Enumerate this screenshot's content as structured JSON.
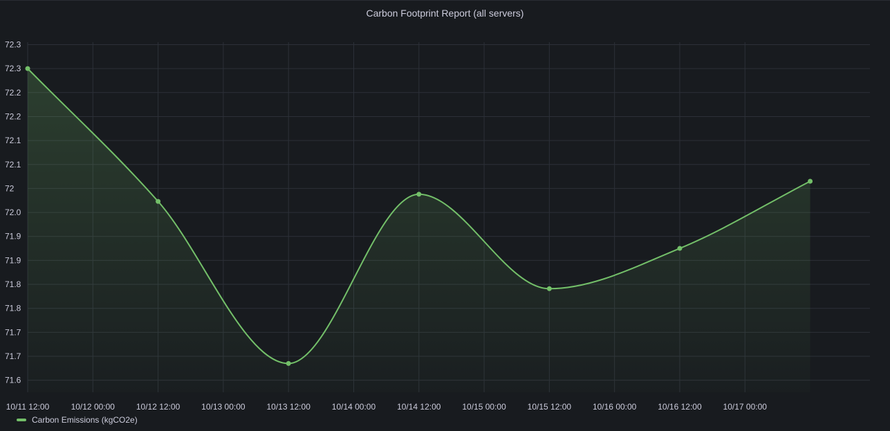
{
  "panel": {
    "title": "Carbon Footprint Report (all servers)"
  },
  "colors": {
    "background": "#181b1f",
    "grid": "#2c3038",
    "series": "#73bf69",
    "text": "#ccccdc"
  },
  "chart_data": {
    "type": "line",
    "title": "Carbon Footprint Report (all servers)",
    "grid": true,
    "legend_placement": "bottom-left",
    "x_type": "time",
    "xlim": [
      "2023-10-11T12:00",
      "2023-10-17T23:00"
    ],
    "ylim": [
      71.6,
      72.33
    ],
    "x_ticks": [
      {
        "t": "2023-10-11T12:00",
        "label": "10/11 12:00"
      },
      {
        "t": "2023-10-12T00:00",
        "label": "10/12 00:00"
      },
      {
        "t": "2023-10-12T12:00",
        "label": "10/12 12:00"
      },
      {
        "t": "2023-10-13T00:00",
        "label": "10/13 00:00"
      },
      {
        "t": "2023-10-13T12:00",
        "label": "10/13 12:00"
      },
      {
        "t": "2023-10-14T00:00",
        "label": "10/14 00:00"
      },
      {
        "t": "2023-10-14T12:00",
        "label": "10/14 12:00"
      },
      {
        "t": "2023-10-15T00:00",
        "label": "10/15 00:00"
      },
      {
        "t": "2023-10-15T12:00",
        "label": "10/15 12:00"
      },
      {
        "t": "2023-10-16T00:00",
        "label": "10/16 00:00"
      },
      {
        "t": "2023-10-16T12:00",
        "label": "10/16 12:00"
      },
      {
        "t": "2023-10-17T00:00",
        "label": "10/17 00:00"
      }
    ],
    "y_ticks": [
      {
        "v": 72.325,
        "label": "72.3"
      },
      {
        "v": 72.275,
        "label": "72.3"
      },
      {
        "v": 72.225,
        "label": "72.2"
      },
      {
        "v": 72.175,
        "label": "72.2"
      },
      {
        "v": 72.125,
        "label": "72.1"
      },
      {
        "v": 72.075,
        "label": "72.1"
      },
      {
        "v": 72.025,
        "label": "72"
      },
      {
        "v": 71.975,
        "label": "72.0"
      },
      {
        "v": 71.925,
        "label": "71.9"
      },
      {
        "v": 71.875,
        "label": "71.9"
      },
      {
        "v": 71.825,
        "label": "71.8"
      },
      {
        "v": 71.775,
        "label": "71.8"
      },
      {
        "v": 71.725,
        "label": "71.7"
      },
      {
        "v": 71.675,
        "label": "71.7"
      },
      {
        "v": 71.625,
        "label": "71.6"
      }
    ],
    "series": [
      {
        "name": "Carbon Emissions (kgCO2e)",
        "points": [
          {
            "t": "2023-10-11T12:00",
            "y": 72.275
          },
          {
            "t": "2023-10-12T12:00",
            "y": 71.998
          },
          {
            "t": "2023-10-13T12:00",
            "y": 71.66
          },
          {
            "t": "2023-10-14T12:00",
            "y": 72.013
          },
          {
            "t": "2023-10-15T12:00",
            "y": 71.816
          },
          {
            "t": "2023-10-16T12:00",
            "y": 71.9
          },
          {
            "t": "2023-10-17T12:00",
            "y": 72.04
          }
        ]
      }
    ]
  },
  "legend": {
    "items": [
      {
        "label": "Carbon Emissions (kgCO2e)"
      }
    ]
  }
}
